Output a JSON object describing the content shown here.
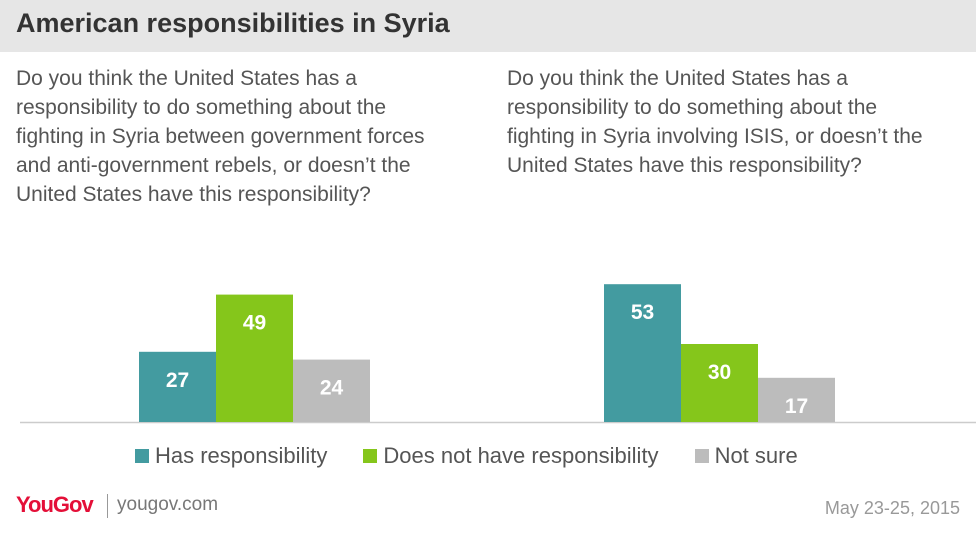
{
  "title": "American responsibilities in Syria",
  "questions": [
    "Do you think the United States has a responsibility to do something about the fighting in Syria between government forces and anti-government rebels, or doesn’t the United States have this responsibility?",
    "Do you think the United States has a responsibility to do something about the fighting in Syria involving ISIS, or doesn’t the United States have this responsibility?"
  ],
  "legend": [
    "Has responsibility",
    "Does not have responsibility",
    "Not sure"
  ],
  "colors": {
    "has": "#439ba0",
    "doesnot": "#85c61b",
    "notsure": "#bcbcbc",
    "brand": "#e40f38"
  },
  "footer": {
    "logo": "YouGov",
    "site": "yougov.com",
    "date": "May 23-25, 2015"
  },
  "chart_data": [
    {
      "type": "bar",
      "categories": [
        "Has responsibility",
        "Does not have responsibility",
        "Not sure"
      ],
      "values": [
        27,
        49,
        24
      ]
    },
    {
      "type": "bar",
      "categories": [
        "Has responsibility",
        "Does not have responsibility",
        "Not sure"
      ],
      "values": [
        53,
        30,
        17
      ]
    }
  ]
}
